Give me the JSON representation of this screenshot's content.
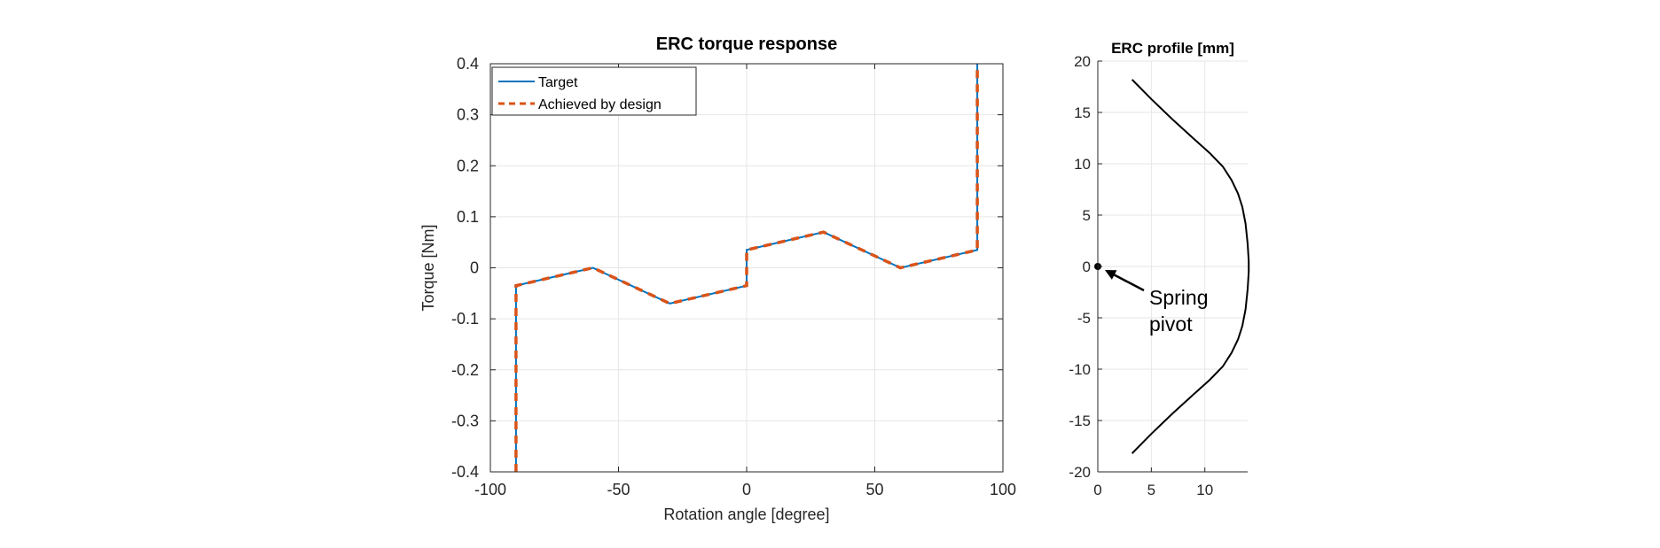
{
  "colors": {
    "target": "#0072bd",
    "achieved": "#d95319",
    "profile": "#000000",
    "grid": "#e6e6e6",
    "axis": "#262626"
  },
  "chart_data": [
    {
      "type": "line",
      "title": "ERC torque response",
      "xlabel": "Rotation angle [degree]",
      "ylabel": "Torque [Nm]",
      "xlim": [
        -100,
        100
      ],
      "ylim": [
        -0.4,
        0.4
      ],
      "xticks": [
        -100,
        -50,
        0,
        50,
        100
      ],
      "xtick_labels": [
        "-100",
        "-50",
        "0",
        "50",
        "100"
      ],
      "yticks": [
        -0.4,
        -0.3,
        -0.2,
        -0.1,
        0,
        0.1,
        0.2,
        0.3,
        0.4
      ],
      "ytick_labels": [
        "-0.4",
        "-0.3",
        "-0.2",
        "-0.1",
        "0",
        "0.1",
        "0.2",
        "0.3",
        "0.4"
      ],
      "grid": true,
      "legend_position": "top-left",
      "series": [
        {
          "name": "Target",
          "style": "solid",
          "x": [
            -90,
            -90,
            -60,
            -30,
            0,
            0,
            30,
            60,
            90,
            90
          ],
          "y": [
            -0.4,
            -0.035,
            0.0,
            -0.07,
            -0.035,
            0.035,
            0.07,
            0.0,
            0.035,
            0.4
          ]
        },
        {
          "name": "Achieved by design",
          "style": "dashed",
          "x": [
            -90,
            -90,
            -60,
            -30,
            0,
            0,
            30,
            60,
            90,
            90
          ],
          "y": [
            -0.4,
            -0.035,
            0.0,
            -0.07,
            -0.035,
            0.035,
            0.07,
            0.0,
            0.035,
            0.4
          ]
        }
      ]
    },
    {
      "type": "line",
      "title": "ERC profile [mm]",
      "xlabel": "",
      "ylabel": "",
      "xlim": [
        0,
        14
      ],
      "ylim": [
        -20,
        20
      ],
      "xticks": [
        0,
        5,
        10
      ],
      "xtick_labels": [
        "0",
        "5",
        "10"
      ],
      "yticks": [
        -20,
        -15,
        -10,
        -5,
        0,
        5,
        10,
        15,
        20
      ],
      "ytick_labels": [
        "-20",
        "-15",
        "-10",
        "-5",
        "0",
        "5",
        "10",
        "15",
        "20"
      ],
      "grid": true,
      "series": [
        {
          "x": [
            3.2,
            5.0,
            7.0,
            9.0,
            10.5,
            11.7,
            12.5,
            13.1,
            13.5,
            13.8,
            14.0,
            14.1,
            14.1,
            14.0,
            13.8,
            13.5,
            13.1,
            12.5,
            11.7,
            10.5,
            9.0,
            7.0,
            5.0,
            3.2
          ],
          "y": [
            18.2,
            16.3,
            14.3,
            12.4,
            11.0,
            9.7,
            8.4,
            7.1,
            5.8,
            4.2,
            2.2,
            0.5,
            -0.5,
            -2.2,
            -4.2,
            -5.8,
            -7.1,
            -8.4,
            -9.7,
            -11.0,
            -12.4,
            -14.3,
            -16.3,
            -18.2
          ]
        }
      ],
      "points": [
        {
          "x": 0,
          "y": 0
        }
      ],
      "annotations": [
        {
          "text": "Spring pivot",
          "lines": [
            "Spring",
            "pivot"
          ],
          "arrow_to": {
            "x": 0,
            "y": 0
          }
        }
      ]
    }
  ]
}
